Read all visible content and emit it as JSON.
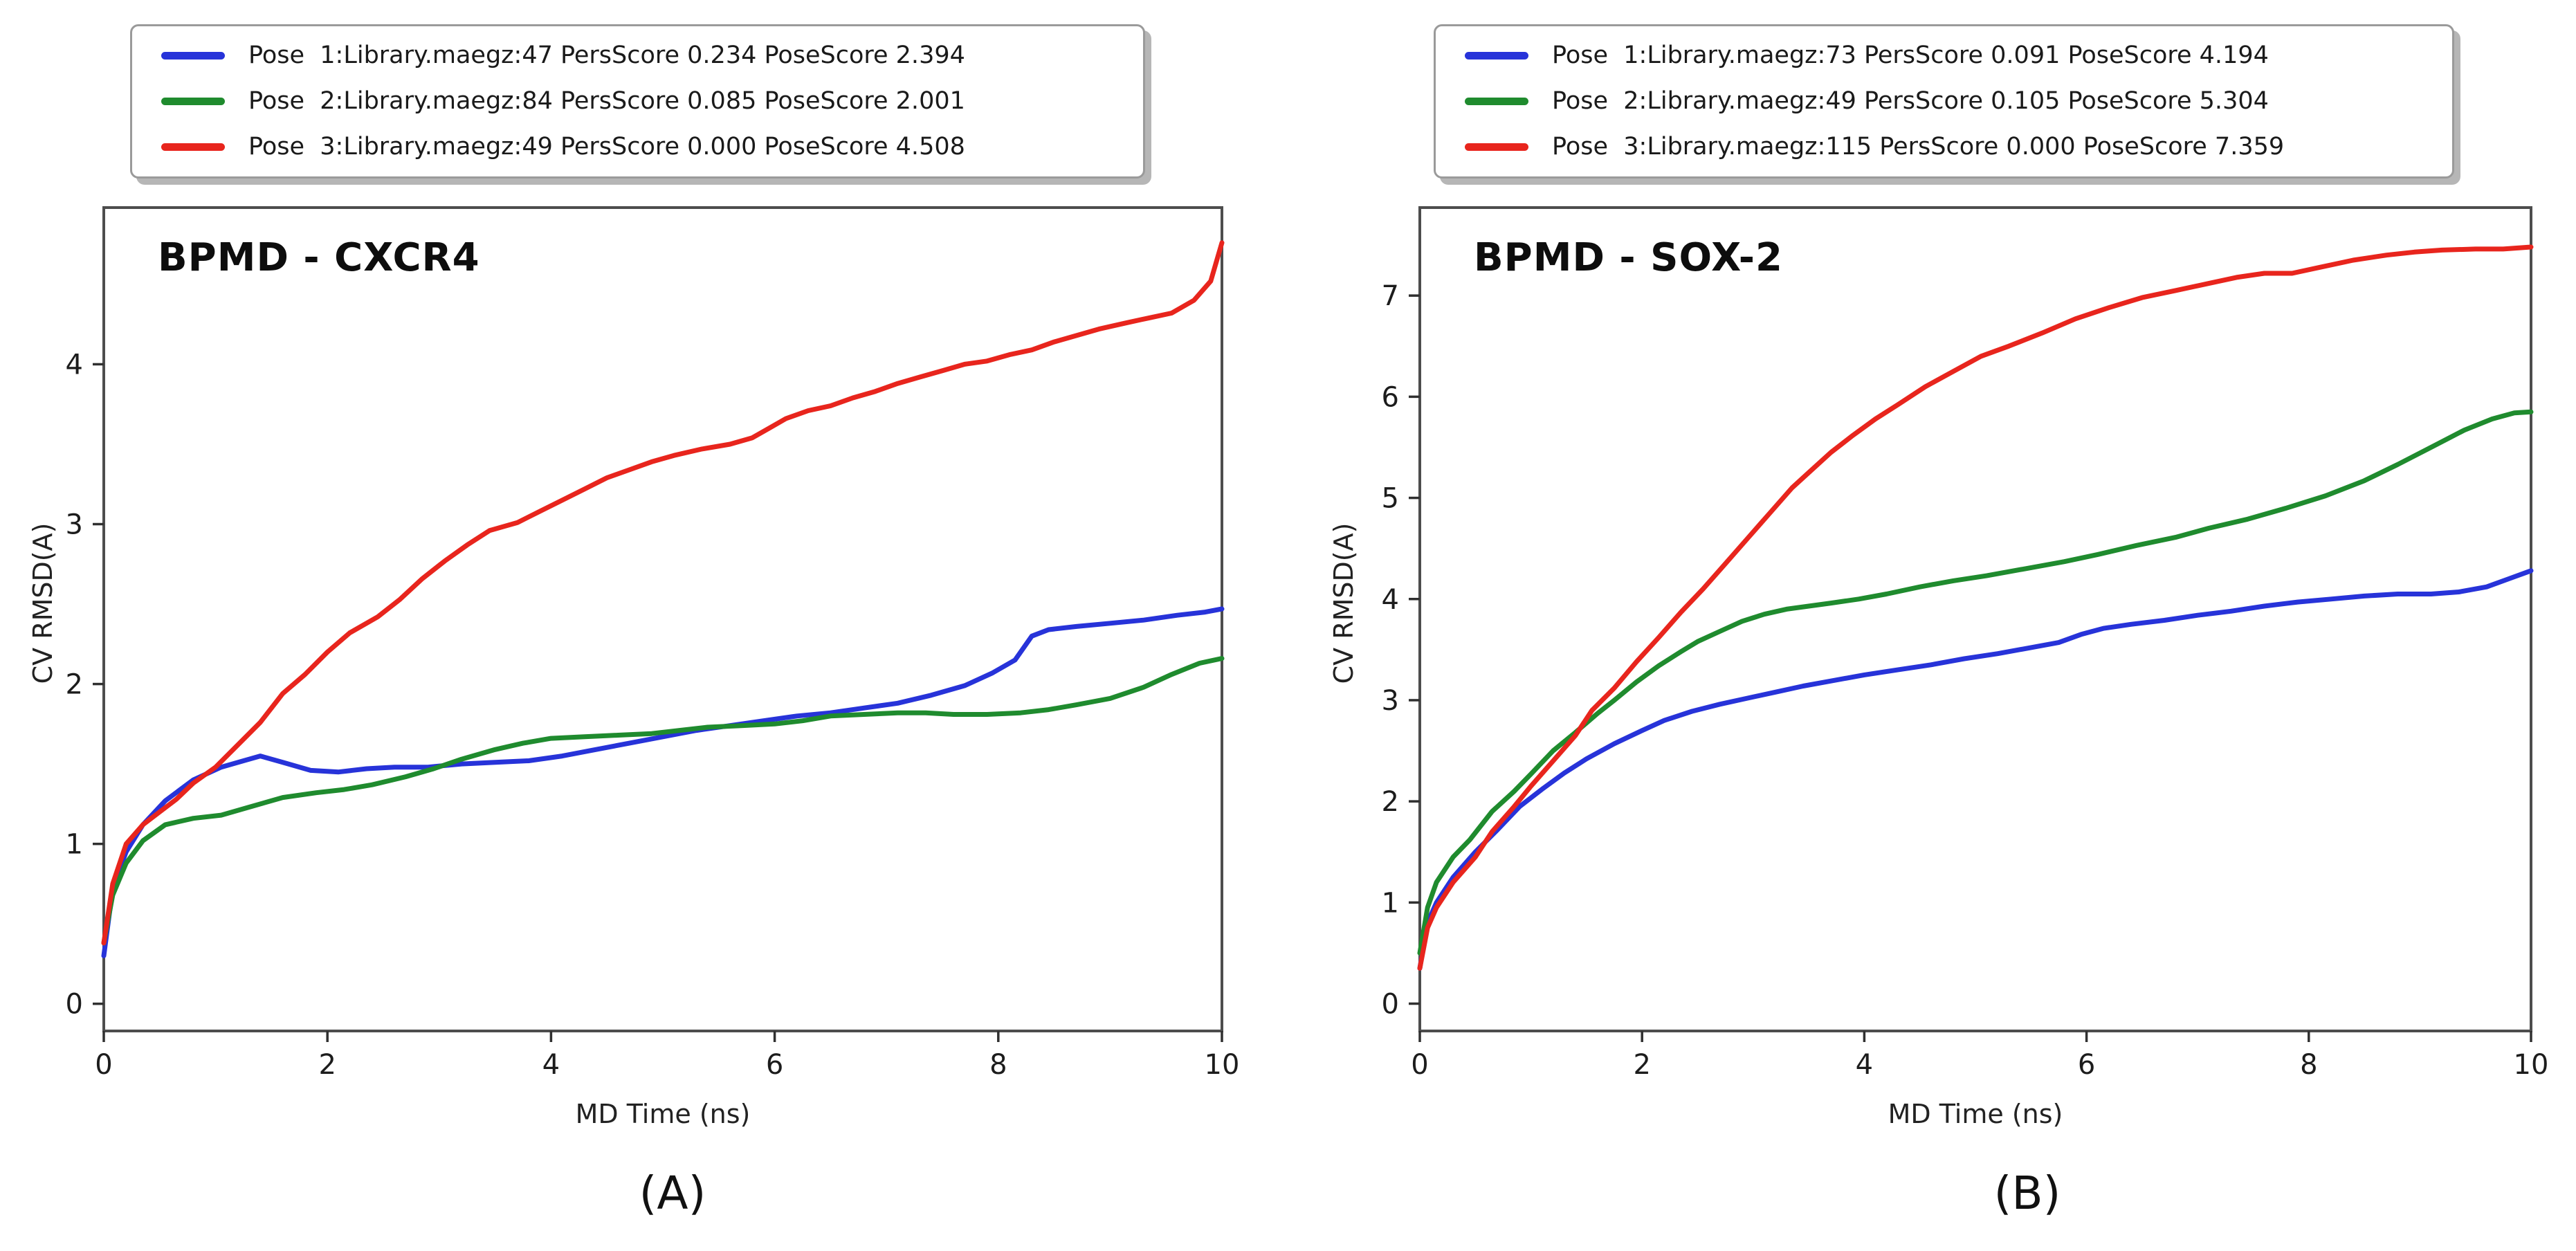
{
  "page": {
    "background": "#ffffff"
  },
  "chart_data": [
    {
      "type": "line",
      "title": "BPMD - CXCR4",
      "caption": "(A)",
      "xlabel": "MD Time (ns)",
      "ylabel": "CV RMSD(A)",
      "xlim": [
        0,
        10
      ],
      "ylim": [
        -0.17,
        4.98
      ],
      "xticks": [
        0,
        2,
        4,
        6,
        8,
        10
      ],
      "yticks": [
        0,
        1,
        2,
        3,
        4
      ],
      "grid": false,
      "legend_position": "above-plot-upper-left",
      "legend": [
        {
          "label": "Pose  1:Library.maegz:47 PersScore 0.234 PoseScore 2.394",
          "color": "#2733d9"
        },
        {
          "label": "Pose  2:Library.maegz:84 PersScore 0.085 PoseScore 2.001",
          "color": "#1f8b2e"
        },
        {
          "label": "Pose  3:Library.maegz:49 PersScore 0.000 PoseScore 4.508",
          "color": "#e8251d"
        }
      ],
      "series": [
        {
          "name": "Pose 1",
          "color": "#2733d9",
          "x": [
            0,
            0.08,
            0.2,
            0.35,
            0.55,
            0.8,
            1.05,
            1.25,
            1.4,
            1.6,
            1.85,
            2.1,
            2.35,
            2.6,
            2.9,
            3.2,
            3.5,
            3.8,
            4.1,
            4.4,
            4.7,
            5.0,
            5.3,
            5.6,
            5.9,
            6.2,
            6.5,
            6.8,
            7.1,
            7.4,
            7.7,
            7.95,
            8.15,
            8.3,
            8.45,
            8.7,
            9.0,
            9.3,
            9.6,
            9.85,
            10
          ],
          "y": [
            0.3,
            0.72,
            0.95,
            1.12,
            1.27,
            1.4,
            1.48,
            1.52,
            1.55,
            1.51,
            1.46,
            1.45,
            1.47,
            1.48,
            1.48,
            1.5,
            1.51,
            1.52,
            1.55,
            1.59,
            1.63,
            1.67,
            1.71,
            1.74,
            1.77,
            1.8,
            1.82,
            1.85,
            1.88,
            1.93,
            1.99,
            2.07,
            2.15,
            2.3,
            2.34,
            2.36,
            2.38,
            2.4,
            2.43,
            2.45,
            2.47
          ]
        },
        {
          "name": "Pose 2",
          "color": "#1f8b2e",
          "x": [
            0,
            0.08,
            0.2,
            0.35,
            0.55,
            0.8,
            1.05,
            1.3,
            1.6,
            1.9,
            2.15,
            2.4,
            2.7,
            2.95,
            3.2,
            3.5,
            3.75,
            4.0,
            4.3,
            4.6,
            4.9,
            5.15,
            5.4,
            5.7,
            6.0,
            6.25,
            6.5,
            6.8,
            7.1,
            7.35,
            7.6,
            7.9,
            8.2,
            8.45,
            8.7,
            9.0,
            9.3,
            9.55,
            9.8,
            10
          ],
          "y": [
            0.38,
            0.68,
            0.88,
            1.02,
            1.12,
            1.16,
            1.18,
            1.23,
            1.29,
            1.32,
            1.34,
            1.37,
            1.42,
            1.47,
            1.53,
            1.59,
            1.63,
            1.66,
            1.67,
            1.68,
            1.69,
            1.71,
            1.73,
            1.74,
            1.75,
            1.77,
            1.8,
            1.81,
            1.82,
            1.82,
            1.81,
            1.81,
            1.82,
            1.84,
            1.87,
            1.91,
            1.98,
            2.06,
            2.13,
            2.16
          ]
        },
        {
          "name": "Pose 3",
          "color": "#e8251d",
          "x": [
            0,
            0.08,
            0.2,
            0.35,
            0.5,
            0.65,
            0.8,
            1.0,
            1.2,
            1.4,
            1.6,
            1.8,
            2.0,
            2.2,
            2.45,
            2.65,
            2.85,
            3.05,
            3.25,
            3.45,
            3.7,
            3.9,
            4.1,
            4.3,
            4.5,
            4.7,
            4.9,
            5.1,
            5.35,
            5.6,
            5.8,
            5.95,
            6.1,
            6.3,
            6.5,
            6.7,
            6.9,
            7.1,
            7.3,
            7.5,
            7.7,
            7.9,
            8.1,
            8.3,
            8.5,
            8.7,
            8.9,
            9.15,
            9.35,
            9.55,
            9.75,
            9.9,
            10
          ],
          "y": [
            0.38,
            0.75,
            1.0,
            1.12,
            1.2,
            1.28,
            1.38,
            1.48,
            1.62,
            1.76,
            1.94,
            2.06,
            2.2,
            2.32,
            2.42,
            2.53,
            2.66,
            2.77,
            2.87,
            2.96,
            3.01,
            3.08,
            3.15,
            3.22,
            3.29,
            3.34,
            3.39,
            3.43,
            3.47,
            3.5,
            3.54,
            3.6,
            3.66,
            3.71,
            3.74,
            3.79,
            3.83,
            3.88,
            3.92,
            3.96,
            4.0,
            4.02,
            4.06,
            4.09,
            4.14,
            4.18,
            4.22,
            4.26,
            4.29,
            4.32,
            4.4,
            4.52,
            4.76
          ]
        }
      ]
    },
    {
      "type": "line",
      "title": "BPMD - SOX-2",
      "caption": "(B)",
      "xlabel": "MD Time (ns)",
      "ylabel": "CV RMSD(A)",
      "xlim": [
        0,
        10
      ],
      "ylim": [
        -0.27,
        7.87
      ],
      "xticks": [
        0,
        2,
        4,
        6,
        8,
        10
      ],
      "yticks": [
        0,
        1,
        2,
        3,
        4,
        5,
        6,
        7
      ],
      "grid": false,
      "legend_position": "above-plot-upper-left",
      "legend": [
        {
          "label": "Pose  1:Library.maegz:73 PersScore 0.091 PoseScore 4.194",
          "color": "#2733d9"
        },
        {
          "label": "Pose  2:Library.maegz:49 PersScore 0.105 PoseScore 5.304",
          "color": "#1f8b2e"
        },
        {
          "label": "Pose  3:Library.maegz:115 PersScore 0.000 PoseScore 7.359",
          "color": "#e8251d"
        }
      ],
      "series": [
        {
          "name": "Pose 1",
          "color": "#2733d9",
          "x": [
            0,
            0.07,
            0.15,
            0.3,
            0.5,
            0.7,
            0.9,
            1.1,
            1.3,
            1.5,
            1.75,
            2.0,
            2.2,
            2.45,
            2.7,
            2.95,
            3.2,
            3.45,
            3.7,
            4.0,
            4.3,
            4.6,
            4.9,
            5.2,
            5.5,
            5.75,
            5.95,
            6.15,
            6.4,
            6.7,
            7.0,
            7.3,
            7.6,
            7.9,
            8.2,
            8.5,
            8.8,
            9.1,
            9.35,
            9.6,
            9.8,
            10
          ],
          "y": [
            0.35,
            0.8,
            1.0,
            1.25,
            1.5,
            1.72,
            1.95,
            2.12,
            2.28,
            2.42,
            2.57,
            2.7,
            2.8,
            2.89,
            2.96,
            3.02,
            3.08,
            3.14,
            3.19,
            3.25,
            3.3,
            3.35,
            3.41,
            3.46,
            3.52,
            3.57,
            3.65,
            3.71,
            3.75,
            3.79,
            3.84,
            3.88,
            3.93,
            3.97,
            4.0,
            4.03,
            4.05,
            4.05,
            4.07,
            4.12,
            4.2,
            4.28
          ]
        },
        {
          "name": "Pose 2",
          "color": "#1f8b2e",
          "x": [
            0,
            0.07,
            0.15,
            0.3,
            0.45,
            0.65,
            0.85,
            1.0,
            1.2,
            1.4,
            1.6,
            1.75,
            1.95,
            2.15,
            2.35,
            2.5,
            2.7,
            2.9,
            3.1,
            3.3,
            3.5,
            3.7,
            3.95,
            4.2,
            4.5,
            4.8,
            5.1,
            5.45,
            5.8,
            6.1,
            6.45,
            6.8,
            7.1,
            7.45,
            7.8,
            8.15,
            8.5,
            8.8,
            9.1,
            9.4,
            9.65,
            9.85,
            10
          ],
          "y": [
            0.5,
            0.95,
            1.2,
            1.45,
            1.62,
            1.9,
            2.1,
            2.27,
            2.5,
            2.68,
            2.87,
            3.0,
            3.18,
            3.34,
            3.48,
            3.58,
            3.68,
            3.78,
            3.85,
            3.9,
            3.93,
            3.96,
            4.0,
            4.05,
            4.12,
            4.18,
            4.23,
            4.3,
            4.37,
            4.44,
            4.53,
            4.61,
            4.7,
            4.79,
            4.9,
            5.02,
            5.17,
            5.33,
            5.5,
            5.67,
            5.78,
            5.84,
            5.85
          ]
        },
        {
          "name": "Pose 3",
          "color": "#e8251d",
          "x": [
            0,
            0.07,
            0.15,
            0.3,
            0.5,
            0.65,
            0.85,
            1.0,
            1.2,
            1.4,
            1.55,
            1.75,
            1.95,
            2.15,
            2.35,
            2.55,
            2.75,
            2.95,
            3.15,
            3.35,
            3.5,
            3.7,
            3.9,
            4.1,
            4.3,
            4.55,
            4.8,
            5.05,
            5.3,
            5.6,
            5.9,
            6.2,
            6.5,
            6.8,
            7.1,
            7.35,
            7.6,
            7.85,
            8.1,
            8.4,
            8.7,
            8.95,
            9.2,
            9.5,
            9.75,
            10
          ],
          "y": [
            0.35,
            0.75,
            0.95,
            1.2,
            1.45,
            1.7,
            1.95,
            2.15,
            2.4,
            2.65,
            2.9,
            3.12,
            3.38,
            3.62,
            3.87,
            4.1,
            4.35,
            4.6,
            4.85,
            5.1,
            5.25,
            5.45,
            5.62,
            5.78,
            5.92,
            6.1,
            6.25,
            6.4,
            6.5,
            6.63,
            6.77,
            6.88,
            6.98,
            7.05,
            7.12,
            7.18,
            7.22,
            7.22,
            7.28,
            7.35,
            7.4,
            7.43,
            7.45,
            7.46,
            7.46,
            7.48
          ]
        }
      ]
    }
  ]
}
